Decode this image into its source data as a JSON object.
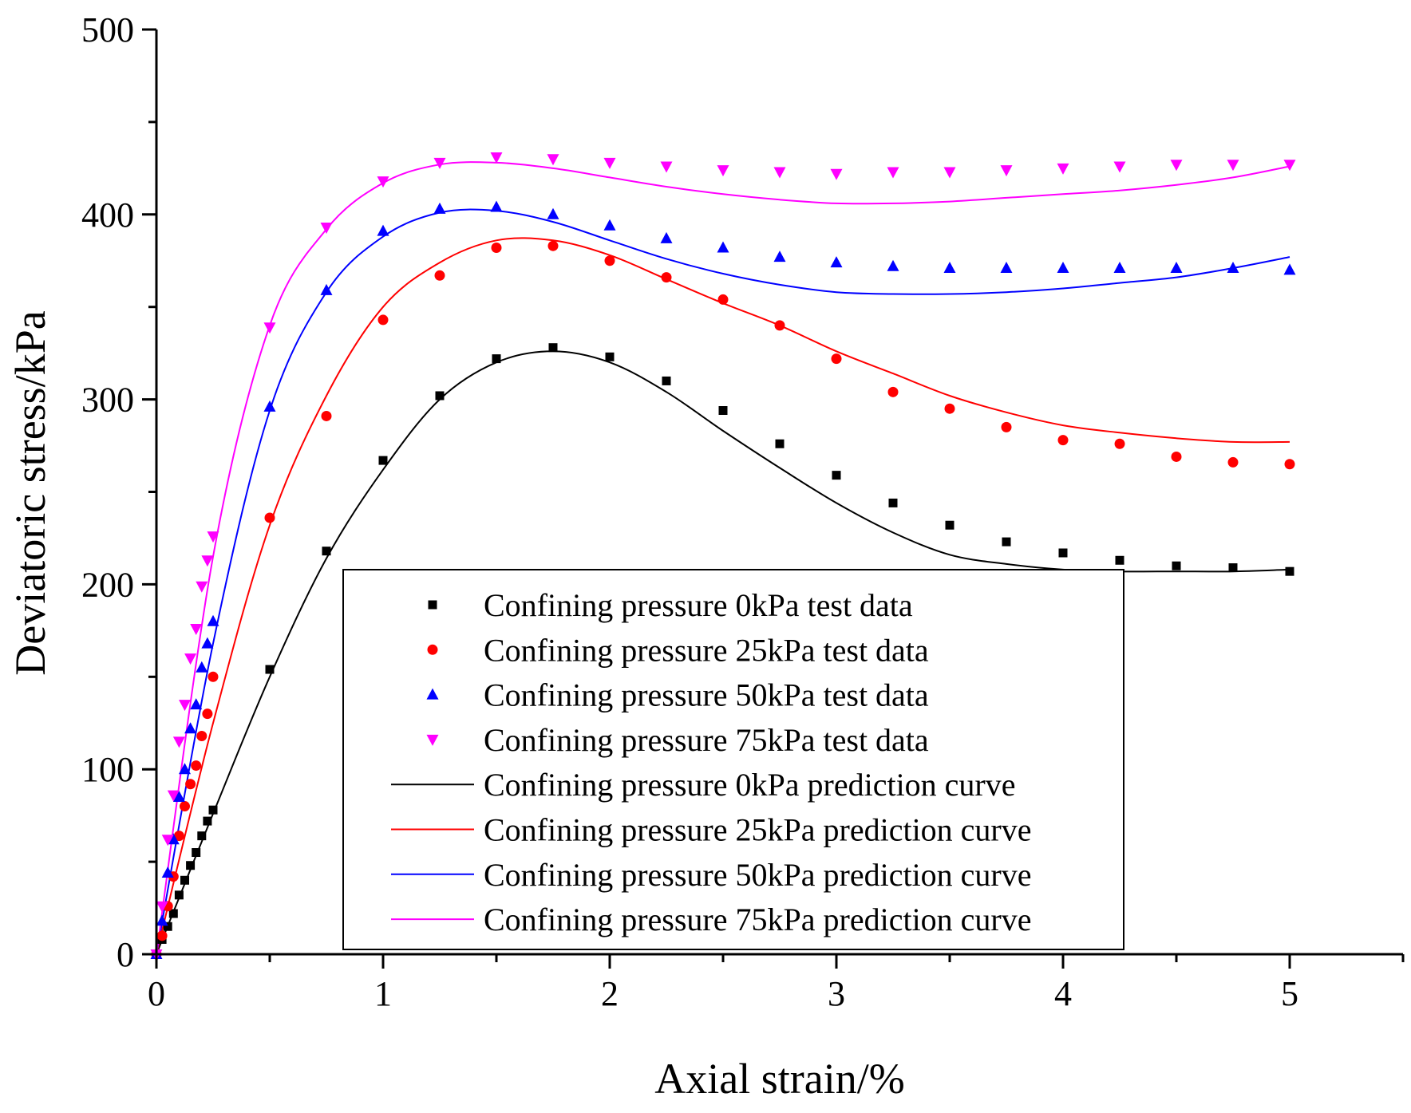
{
  "chart_data": {
    "type": "scatter",
    "title": "",
    "xlabel": "Axial strain/%",
    "ylabel": "Deviatoric stress/kPa",
    "xlim": [
      0,
      5.5
    ],
    "ylim": [
      0,
      500
    ],
    "xticks": [
      0,
      1,
      2,
      3,
      4,
      5
    ],
    "yticks": [
      0,
      100,
      200,
      300,
      400,
      500
    ],
    "grid": false,
    "legend_position": "center-bottom",
    "series": [
      {
        "name": "Confining pressure 0kPa test data",
        "kind": "scatter",
        "marker": "square",
        "color": "#000000",
        "x": [
          0,
          0.025,
          0.05,
          0.075,
          0.1,
          0.125,
          0.15,
          0.175,
          0.2,
          0.225,
          0.25,
          0.5,
          0.75,
          1.0,
          1.25,
          1.5,
          1.75,
          2.0,
          2.25,
          2.5,
          2.75,
          3.0,
          3.25,
          3.5,
          3.75,
          4.0,
          4.25,
          4.5,
          4.75,
          5.0
        ],
        "y": [
          0,
          8,
          15,
          22,
          32,
          40,
          48,
          55,
          64,
          72,
          78,
          154,
          218,
          267,
          302,
          322,
          328,
          323,
          310,
          294,
          276,
          259,
          244,
          232,
          223,
          217,
          213,
          210,
          209,
          207
        ]
      },
      {
        "name": "Confining pressure 25kPa test data",
        "kind": "scatter",
        "marker": "circle",
        "color": "#ff0000",
        "x": [
          0,
          0.025,
          0.05,
          0.075,
          0.1,
          0.125,
          0.15,
          0.175,
          0.2,
          0.225,
          0.25,
          0.5,
          0.75,
          1.0,
          1.25,
          1.5,
          1.75,
          2.0,
          2.25,
          2.5,
          2.75,
          3.0,
          3.25,
          3.5,
          3.75,
          4.0,
          4.25,
          4.5,
          4.75,
          5.0
        ],
        "y": [
          0,
          10,
          26,
          42,
          64,
          80,
          92,
          102,
          118,
          130,
          150,
          236,
          291,
          343,
          367,
          382,
          383,
          375,
          366,
          354,
          340,
          322,
          304,
          295,
          285,
          278,
          276,
          269,
          266,
          265
        ]
      },
      {
        "name": "Confining pressure 50kPa test data",
        "kind": "scatter",
        "marker": "triangle-up",
        "color": "#0000ff",
        "x": [
          0,
          0.025,
          0.05,
          0.075,
          0.1,
          0.125,
          0.15,
          0.175,
          0.2,
          0.225,
          0.25,
          0.5,
          0.75,
          1.0,
          1.25,
          1.5,
          1.75,
          2.0,
          2.25,
          2.5,
          2.75,
          3.0,
          3.25,
          3.5,
          3.75,
          4.0,
          4.25,
          4.5,
          4.75,
          5.0
        ],
        "y": [
          0,
          18,
          44,
          62,
          85,
          100,
          122,
          135,
          155,
          168,
          180,
          296,
          359,
          391,
          403,
          404,
          400,
          394,
          387,
          382,
          377,
          374,
          372,
          371,
          371,
          371,
          371,
          371,
          371,
          370
        ]
      },
      {
        "name": "Confining pressure 75kPa test data",
        "kind": "scatter",
        "marker": "triangle-down",
        "color": "#ff00ff",
        "x": [
          0,
          0.025,
          0.05,
          0.075,
          0.1,
          0.125,
          0.15,
          0.175,
          0.2,
          0.225,
          0.25,
          0.5,
          0.75,
          1.0,
          1.25,
          1.5,
          1.75,
          2.0,
          2.25,
          2.5,
          2.75,
          3.0,
          3.25,
          3.5,
          3.75,
          4.0,
          4.25,
          4.5,
          4.75,
          5.0
        ],
        "y": [
          0,
          26,
          62,
          86,
          115,
          135,
          160,
          176,
          199,
          213,
          226,
          339,
          393,
          418,
          428,
          431,
          430,
          428,
          426,
          424,
          423,
          422,
          423,
          423,
          424,
          425,
          426,
          427,
          427,
          427
        ]
      },
      {
        "name": "Confining pressure 0kPa prediction curve",
        "kind": "line",
        "color": "#000000",
        "x": [
          0,
          0.25,
          0.5,
          0.75,
          1.0,
          1.25,
          1.5,
          1.75,
          2.0,
          2.25,
          2.5,
          2.75,
          3.0,
          3.25,
          3.5,
          3.75,
          4.0,
          4.25,
          4.5,
          4.75,
          5.0
        ],
        "y": [
          0,
          76,
          150,
          214,
          262,
          300,
          320,
          326,
          320,
          304,
          283,
          263,
          244,
          228,
          216,
          211,
          208,
          207,
          207,
          207,
          208
        ]
      },
      {
        "name": "Confining pressure 25kPa prediction curve",
        "kind": "line",
        "color": "#ff0000",
        "x": [
          0,
          0.25,
          0.5,
          0.75,
          1.0,
          1.25,
          1.5,
          1.75,
          2.0,
          2.25,
          2.5,
          2.75,
          3.0,
          3.25,
          3.5,
          3.75,
          4.0,
          4.25,
          4.5,
          4.75,
          5.0
        ],
        "y": [
          0,
          125,
          232,
          302,
          350,
          374,
          386,
          386,
          378,
          365,
          352,
          340,
          326,
          314,
          302,
          293,
          286,
          282,
          279,
          277,
          277
        ]
      },
      {
        "name": "Confining pressure 50kPa prediction curve",
        "kind": "line",
        "color": "#0000ff",
        "x": [
          0,
          0.25,
          0.5,
          0.75,
          1.0,
          1.25,
          1.5,
          1.75,
          2.0,
          2.25,
          2.5,
          2.75,
          3.0,
          3.25,
          3.5,
          3.75,
          4.0,
          4.25,
          4.5,
          4.75,
          5.0
        ],
        "y": [
          0,
          168,
          294,
          358,
          388,
          401,
          402,
          396,
          386,
          376,
          368,
          362,
          358,
          357,
          357,
          358,
          360,
          363,
          366,
          371,
          377
        ]
      },
      {
        "name": "Confining pressure 75kPa prediction curve",
        "kind": "line",
        "color": "#ff00ff",
        "x": [
          0,
          0.25,
          0.5,
          0.75,
          1.0,
          1.25,
          1.5,
          1.75,
          2.0,
          2.25,
          2.5,
          2.75,
          3.0,
          3.25,
          3.5,
          3.75,
          4.0,
          4.25,
          4.5,
          4.75,
          5.0
        ],
        "y": [
          0,
          215,
          340,
          392,
          417,
          427,
          428,
          425,
          420,
          415,
          411,
          408,
          406,
          406,
          407,
          409,
          411,
          413,
          416,
          420,
          426
        ]
      }
    ]
  }
}
